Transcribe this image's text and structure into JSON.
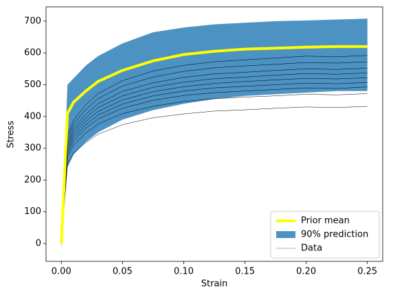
{
  "chart_data": {
    "type": "line",
    "xlabel": "Strain",
    "ylabel": "Stress",
    "x": [
      0,
      0.005,
      0.01,
      0.02,
      0.03,
      0.05,
      0.075,
      0.1,
      0.125,
      0.15,
      0.175,
      0.2,
      0.225,
      0.25
    ],
    "xlim": [
      -0.0125,
      0.2625
    ],
    "ylim": [
      -56,
      745
    ],
    "xticks": [
      {
        "value": 0,
        "label": "0.00"
      },
      0.05,
      {
        "value": 0.1,
        "label": "0.10"
      },
      0.15,
      {
        "value": 0.2,
        "label": "0.20"
      },
      0.25
    ],
    "yticks": [
      0,
      100,
      200,
      300,
      400,
      500,
      600,
      700
    ],
    "legend": "lower right",
    "series": [
      {
        "name": "Prior mean",
        "color": "#ffff00",
        "values": [
          0,
          410,
          445,
          480,
          510,
          545,
          575,
          595,
          605,
          612,
          615,
          618,
          620,
          620
        ]
      },
      {
        "name": "90% prediction",
        "color": "#1f77b4",
        "lower": [
          -15,
          240,
          280,
          320,
          350,
          390,
          420,
          440,
          455,
          465,
          470,
          475,
          480,
          480
        ],
        "upper": [
          0,
          500,
          520,
          560,
          590,
          630,
          665,
          680,
          690,
          695,
          700,
          702,
          705,
          708
        ]
      },
      {
        "name": "Data",
        "color": "#000000",
        "lines": [
          [
            0,
            250,
            285,
            318,
            344,
            374,
            396,
            408,
            417,
            421,
            426,
            430,
            428,
            432
          ],
          [
            0,
            273,
            310,
            348,
            376,
            409,
            432,
            447,
            456,
            461,
            465,
            470,
            468,
            472
          ],
          [
            0,
            284,
            323,
            363,
            392,
            426,
            451,
            466,
            475,
            480,
            485,
            490,
            488,
            493
          ],
          [
            0,
            293,
            333,
            374,
            404,
            439,
            465,
            480,
            490,
            495,
            500,
            505,
            503,
            507
          ],
          [
            0,
            302,
            343,
            385,
            416,
            452,
            478,
            494,
            504,
            510,
            515,
            520,
            518,
            522
          ],
          [
            0,
            310,
            353,
            396,
            428,
            465,
            492,
            508,
            519,
            524,
            530,
            535,
            533,
            537
          ],
          [
            0,
            319,
            363,
            407,
            440,
            479,
            506,
            523,
            534,
            539,
            545,
            550,
            548,
            552
          ],
          [
            0,
            331,
            376,
            422,
            456,
            496,
            524,
            542,
            553,
            559,
            564,
            570,
            568,
            572
          ],
          [
            0,
            342,
            389,
            437,
            472,
            513,
            543,
            561,
            572,
            578,
            584,
            590,
            588,
            592
          ]
        ]
      }
    ]
  }
}
